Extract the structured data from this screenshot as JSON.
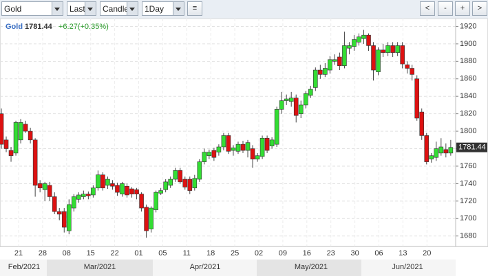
{
  "toolbar": {
    "symbol": "Gold",
    "field": "Last",
    "style": "Candle",
    "interval": "1Day",
    "buttons": [
      "<",
      "-",
      "+",
      ">"
    ]
  },
  "chart_data": {
    "type": "candlestick",
    "symbol": "Gold",
    "price": "1781.44",
    "change": "+6.27(+0.35%)",
    "ohlc": [
      [
        1820,
        1826,
        1780,
        1785
      ],
      [
        1790,
        1794,
        1776,
        1780
      ],
      [
        1778,
        1782,
        1765,
        1772
      ],
      [
        1775,
        1812,
        1772,
        1810
      ],
      [
        1790,
        1814,
        1786,
        1810
      ],
      [
        1808,
        1812,
        1798,
        1800
      ],
      [
        1800,
        1804,
        1786,
        1790
      ],
      [
        1790,
        1792,
        1725,
        1738
      ],
      [
        1740,
        1744,
        1730,
        1735
      ],
      [
        1733,
        1742,
        1720,
        1740
      ],
      [
        1738,
        1742,
        1720,
        1725
      ],
      [
        1725,
        1730,
        1705,
        1708
      ],
      [
        1708,
        1712,
        1698,
        1705
      ],
      [
        1708,
        1712,
        1684,
        1690
      ],
      [
        1686,
        1722,
        1682,
        1716
      ],
      [
        1712,
        1728,
        1708,
        1725
      ],
      [
        1722,
        1730,
        1718,
        1727
      ],
      [
        1725,
        1732,
        1722,
        1728
      ],
      [
        1728,
        1731,
        1722,
        1726
      ],
      [
        1727,
        1738,
        1724,
        1735
      ],
      [
        1735,
        1755,
        1732,
        1750
      ],
      [
        1750,
        1753,
        1732,
        1735
      ],
      [
        1738,
        1748,
        1734,
        1745
      ],
      [
        1740,
        1744,
        1733,
        1737
      ],
      [
        1738,
        1741,
        1726,
        1730
      ],
      [
        1728,
        1742,
        1725,
        1740
      ],
      [
        1737,
        1740,
        1724,
        1727
      ],
      [
        1734,
        1736,
        1724,
        1728
      ],
      [
        1733,
        1735,
        1722,
        1728
      ],
      [
        1728,
        1730,
        1708,
        1712
      ],
      [
        1713,
        1716,
        1678,
        1686
      ],
      [
        1688,
        1714,
        1684,
        1712
      ],
      [
        1710,
        1732,
        1707,
        1730
      ],
      [
        1729,
        1735,
        1727,
        1732
      ],
      [
        1733,
        1745,
        1730,
        1742
      ],
      [
        1738,
        1748,
        1735,
        1745
      ],
      [
        1745,
        1758,
        1742,
        1755
      ],
      [
        1755,
        1758,
        1740,
        1742
      ],
      [
        1745,
        1748,
        1733,
        1736
      ],
      [
        1745,
        1748,
        1728,
        1732
      ],
      [
        1735,
        1750,
        1732,
        1746
      ],
      [
        1745,
        1768,
        1742,
        1765
      ],
      [
        1765,
        1780,
        1762,
        1776
      ],
      [
        1772,
        1779,
        1768,
        1776
      ],
      [
        1778,
        1781,
        1766,
        1770
      ],
      [
        1776,
        1785,
        1772,
        1782
      ],
      [
        1782,
        1798,
        1778,
        1795
      ],
      [
        1795,
        1798,
        1774,
        1777
      ],
      [
        1778,
        1784,
        1772,
        1781
      ],
      [
        1777,
        1788,
        1774,
        1785
      ],
      [
        1785,
        1789,
        1775,
        1778
      ],
      [
        1778,
        1790,
        1770,
        1787
      ],
      [
        1780,
        1784,
        1758,
        1768
      ],
      [
        1768,
        1775,
        1765,
        1772
      ],
      [
        1771,
        1795,
        1768,
        1792
      ],
      [
        1792,
        1795,
        1775,
        1778
      ],
      [
        1783,
        1793,
        1780,
        1790
      ],
      [
        1785,
        1828,
        1782,
        1825
      ],
      [
        1825,
        1845,
        1820,
        1835
      ],
      [
        1835,
        1842,
        1830,
        1837
      ],
      [
        1834,
        1845,
        1828,
        1838
      ],
      [
        1838,
        1842,
        1810,
        1818
      ],
      [
        1820,
        1835,
        1815,
        1830
      ],
      [
        1830,
        1846,
        1826,
        1843
      ],
      [
        1841,
        1852,
        1838,
        1848
      ],
      [
        1850,
        1873,
        1846,
        1870
      ],
      [
        1870,
        1876,
        1860,
        1865
      ],
      [
        1865,
        1878,
        1862,
        1872
      ],
      [
        1870,
        1886,
        1866,
        1882
      ],
      [
        1880,
        1888,
        1876,
        1882
      ],
      [
        1885,
        1890,
        1870,
        1875
      ],
      [
        1875,
        1914,
        1872,
        1898
      ],
      [
        1895,
        1902,
        1888,
        1898
      ],
      [
        1897,
        1910,
        1892,
        1905
      ],
      [
        1902,
        1912,
        1898,
        1908
      ],
      [
        1906,
        1916,
        1900,
        1910
      ],
      [
        1910,
        1912,
        1892,
        1898
      ],
      [
        1898,
        1902,
        1858,
        1870
      ],
      [
        1868,
        1896,
        1864,
        1893
      ],
      [
        1893,
        1900,
        1885,
        1890
      ],
      [
        1890,
        1902,
        1886,
        1898
      ],
      [
        1898,
        1902,
        1885,
        1890
      ],
      [
        1890,
        1902,
        1886,
        1898
      ],
      [
        1898,
        1902,
        1872,
        1877
      ],
      [
        1876,
        1880,
        1866,
        1872
      ],
      [
        1872,
        1876,
        1858,
        1865
      ],
      [
        1860,
        1864,
        1812,
        1815
      ],
      [
        1822,
        1826,
        1790,
        1795
      ],
      [
        1795,
        1798,
        1762,
        1765
      ],
      [
        1768,
        1775,
        1764,
        1772
      ],
      [
        1770,
        1788,
        1766,
        1780
      ],
      [
        1775,
        1792,
        1772,
        1782
      ],
      [
        1779,
        1786,
        1770,
        1775
      ],
      [
        1775,
        1790,
        1772,
        1781.44
      ]
    ],
    "up_color": "#33dd33",
    "down_color": "#dd1111",
    "ylim": [
      1668,
      1929
    ],
    "yticks": [
      1680,
      1700,
      1720,
      1740,
      1760,
      1780,
      1800,
      1820,
      1840,
      1860,
      1880,
      1900,
      1920
    ],
    "grid": true,
    "last_label": "1781.44",
    "xtick_labels": [
      "21",
      "28",
      "08",
      "15",
      "22",
      "01",
      "05",
      "11",
      "18",
      "25",
      "02",
      "09",
      "16",
      "23",
      "30",
      "06",
      "13",
      "20"
    ],
    "months": [
      "Feb/2021",
      "Mar/2021",
      "Apr/2021",
      "May/2021",
      "Jun/2021"
    ]
  }
}
